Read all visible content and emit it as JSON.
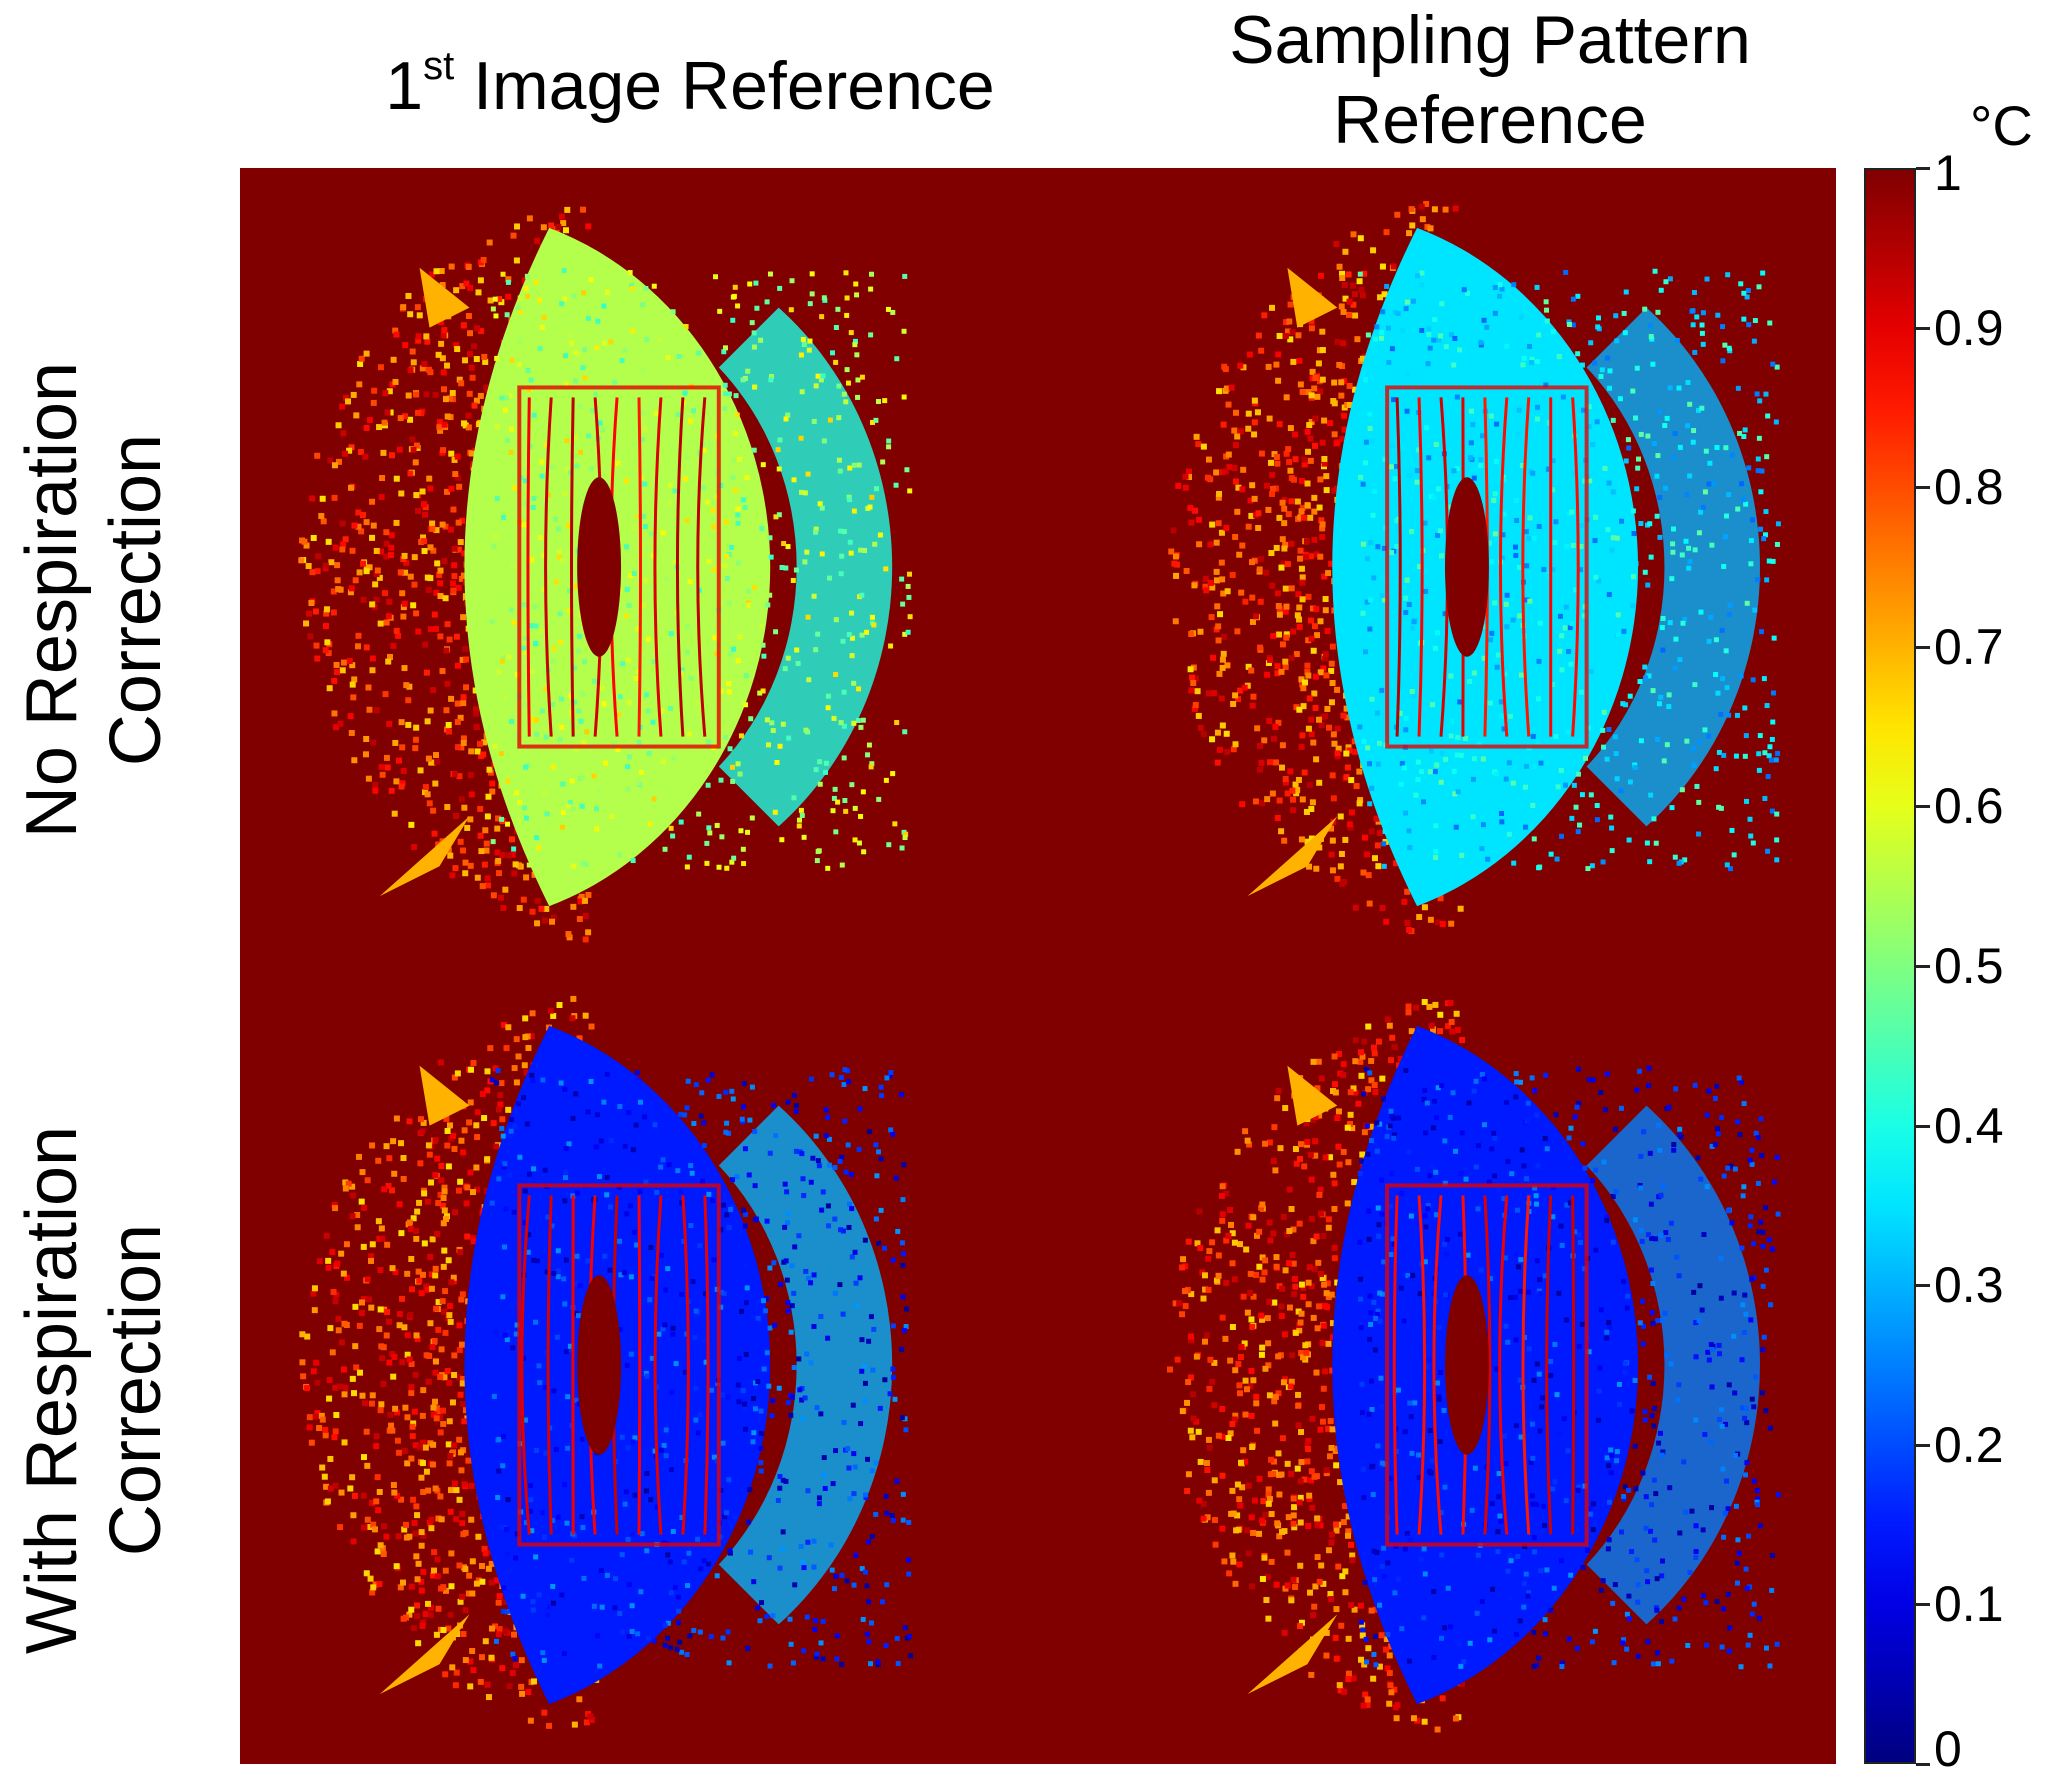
{
  "columns": [
    {
      "main": "1",
      "sup": "st",
      "rest": " Image Reference"
    },
    {
      "line1": "Sampling Pattern",
      "line2": "Reference"
    }
  ],
  "rows": [
    {
      "line1": "No Respiration",
      "line2": "Correction"
    },
    {
      "line1": "With Respiration",
      "line2": "Correction"
    }
  ],
  "colorbar": {
    "unit": "°C",
    "min": 0,
    "max": 1,
    "ticks": [
      "0",
      "0.1",
      "0.2",
      "0.3",
      "0.4",
      "0.5",
      "0.6",
      "0.7",
      "0.8",
      "0.9",
      "1"
    ],
    "colormap": "jet",
    "colors": [
      "#00008f",
      "#0000ff",
      "#00ffff",
      "#ffff00",
      "#ff0000",
      "#800000"
    ]
  },
  "panels": [
    {
      "row": 0,
      "col": 0,
      "body_level": 0.55,
      "rim_level": 0.4
    },
    {
      "row": 0,
      "col": 1,
      "body_level": 0.35,
      "rim_level": 0.3
    },
    {
      "row": 1,
      "col": 0,
      "body_level": 0.15,
      "rim_level": 0.3
    },
    {
      "row": 1,
      "col": 1,
      "body_level": 0.15,
      "rim_level": 0.25
    }
  ],
  "background_level": 1
}
